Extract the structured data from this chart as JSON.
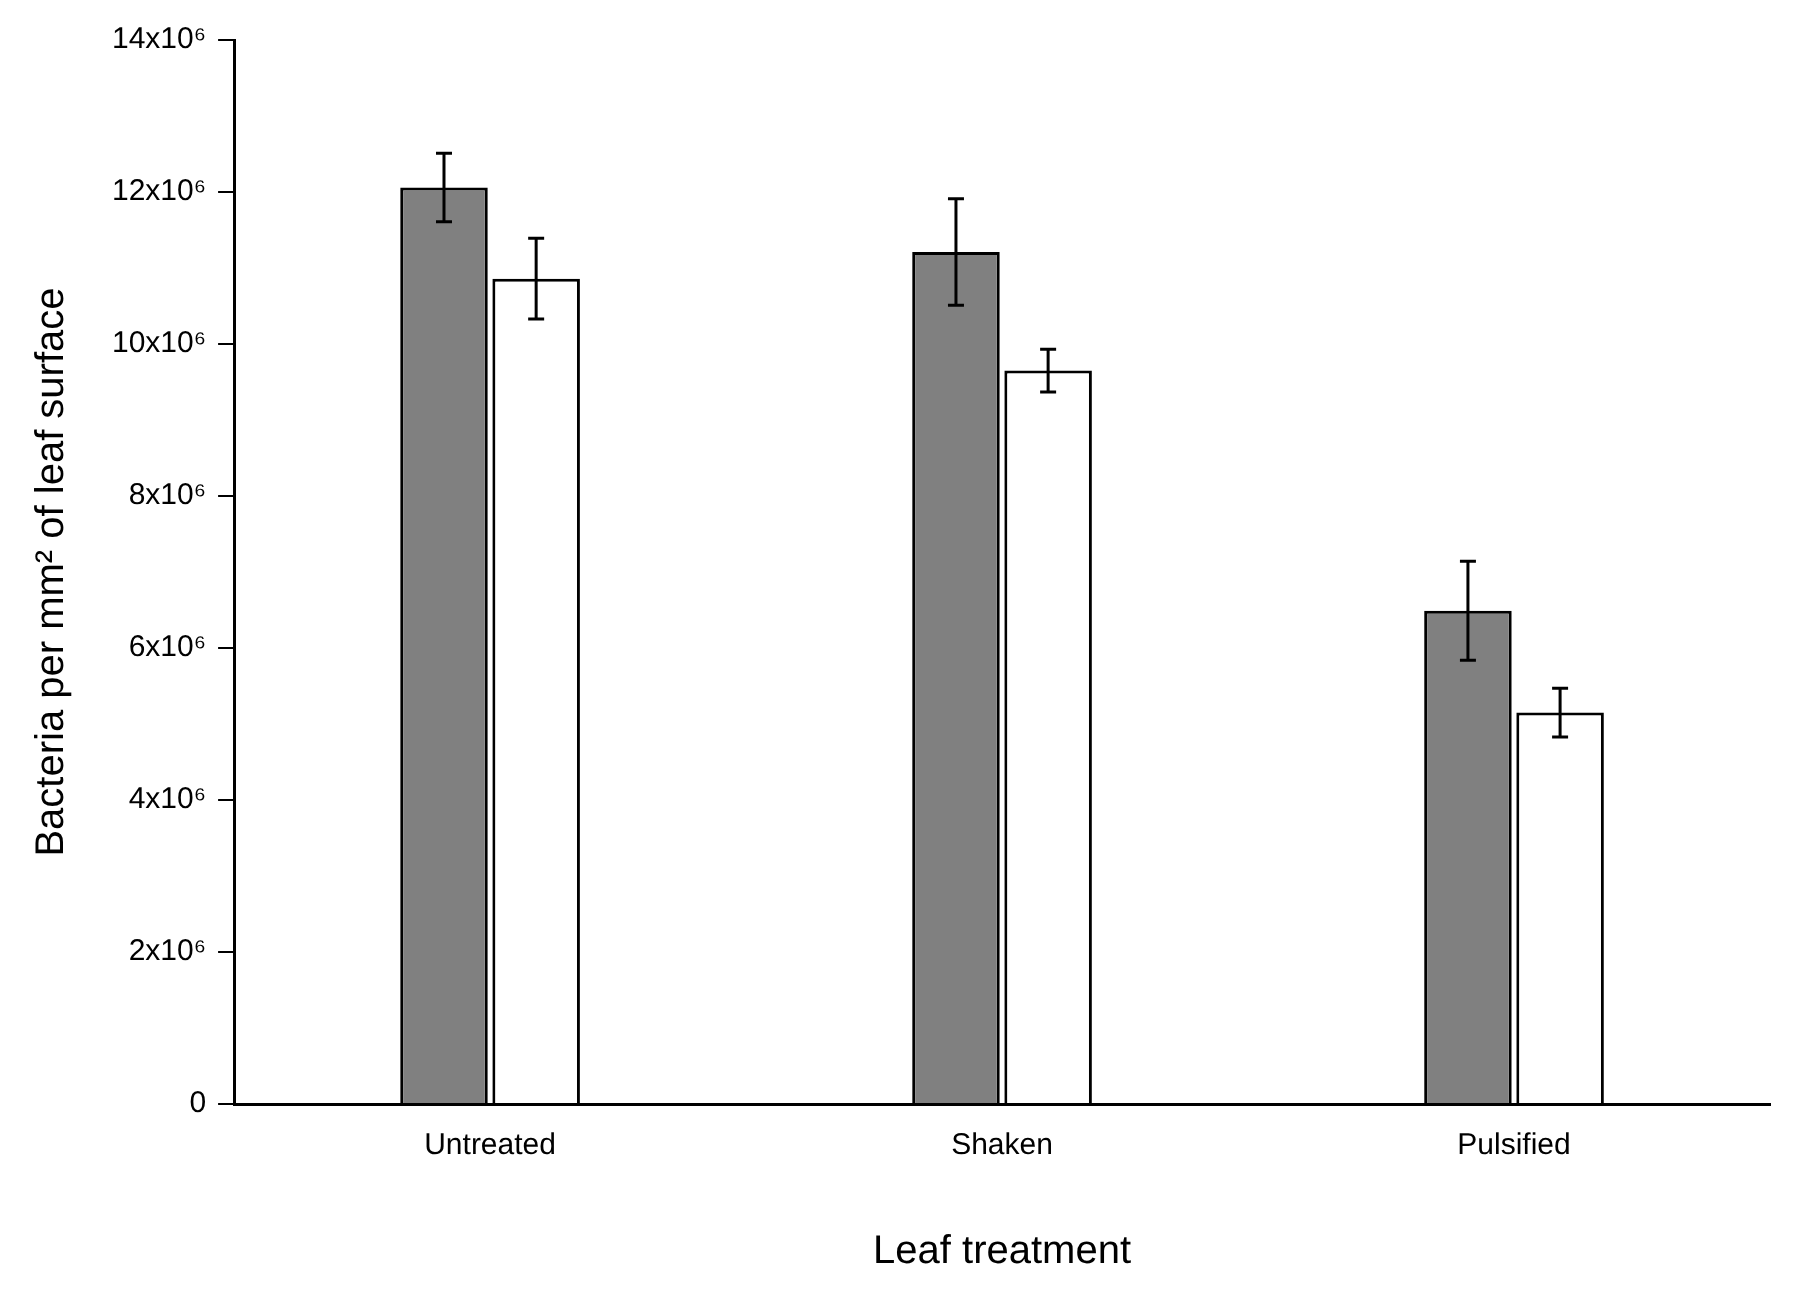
{
  "chart_data": {
    "type": "bar",
    "xlabel": "Leaf treatment",
    "ylabel": "Bacteria per mm² of leaf surface",
    "categories": [
      "Untreated",
      "Shaken",
      "Pulsified"
    ],
    "series": [
      {
        "color": "#808080",
        "values": [
          12060000,
          11210000,
          6490000
        ],
        "errors": [
          450000,
          700000,
          650000
        ]
      },
      {
        "color": "#ffffff",
        "values": [
          10860000,
          9650000,
          5150000
        ],
        "errors": [
          530000,
          280000,
          320000
        ]
      }
    ],
    "ylim": [
      0,
      14000000
    ],
    "yticks": [
      0,
      {
        "value": 2000000,
        "label": "2x10⁶"
      },
      {
        "value": 4000000,
        "label": "4x10⁶"
      },
      {
        "value": 6000000,
        "label": "6x10⁶"
      },
      {
        "value": 8000000,
        "label": "8x10⁶"
      },
      {
        "value": 10000000,
        "label": "10x10⁶"
      },
      {
        "value": 12000000,
        "label": "12x10⁶"
      },
      {
        "value": 14000000,
        "label": "14x10⁶"
      }
    ],
    "grid": false,
    "legend": false
  }
}
